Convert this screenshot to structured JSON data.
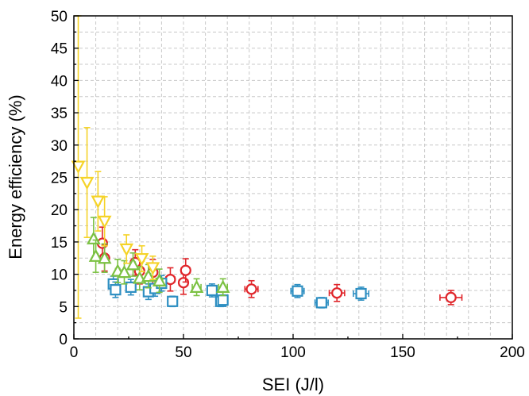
{
  "chart_data": {
    "type": "scatter",
    "xlabel": "SEI (J/l)",
    "ylabel": "Energy efficiency (%)",
    "xlim": [
      0,
      200
    ],
    "ylim": [
      0,
      50
    ],
    "xticks": [
      "0",
      "50",
      "100",
      "150",
      "200"
    ],
    "yticks": [
      "0",
      "5",
      "10",
      "15",
      "20",
      "25",
      "30",
      "35",
      "40",
      "45",
      "50"
    ],
    "grid": true,
    "series": [
      {
        "marker": "circle",
        "color": "#e0262b",
        "points": [
          {
            "x": 13,
            "y": 14.8,
            "ey": 2.5,
            "ex": 1
          },
          {
            "x": 14,
            "y": 12.5,
            "ey": 2,
            "ex": 1
          },
          {
            "x": 28,
            "y": 11.8,
            "ey": 2,
            "ex": 1.5
          },
          {
            "x": 30,
            "y": 10.5,
            "ey": 2,
            "ex": 1.5
          },
          {
            "x": 36,
            "y": 10.3,
            "ey": 2,
            "ex": 1.5
          },
          {
            "x": 44,
            "y": 9.2,
            "ey": 1.8,
            "ex": 2
          },
          {
            "x": 50,
            "y": 8.7,
            "ey": 1.8,
            "ex": 2
          },
          {
            "x": 51,
            "y": 10.6,
            "ey": 1.8,
            "ex": 2
          },
          {
            "x": 81,
            "y": 7.7,
            "ey": 1.3,
            "ex": 3
          },
          {
            "x": 120,
            "y": 7.1,
            "ey": 1.3,
            "ex": 3.5
          },
          {
            "x": 172,
            "y": 6.4,
            "ey": 1.1,
            "ex": 5
          }
        ]
      },
      {
        "marker": "square",
        "color": "#2e8fc2",
        "points": [
          {
            "x": 18,
            "y": 8.5,
            "ey": 1.2,
            "ex": 1
          },
          {
            "x": 19,
            "y": 7.6,
            "ey": 1.2,
            "ex": 1
          },
          {
            "x": 26,
            "y": 8.0,
            "ey": 1.2,
            "ex": 1
          },
          {
            "x": 34,
            "y": 7.3,
            "ey": 1.2,
            "ex": 1.5
          },
          {
            "x": 37,
            "y": 7.8,
            "ey": 1.2,
            "ex": 1.5
          },
          {
            "x": 40,
            "y": 8.6,
            "ey": 1.2,
            "ex": 1.5
          },
          {
            "x": 45,
            "y": 5.8,
            "ey": 0.8,
            "ex": 1.5
          },
          {
            "x": 63,
            "y": 7.5,
            "ey": 1,
            "ex": 2
          },
          {
            "x": 67,
            "y": 5.8,
            "ey": 0.8,
            "ex": 2
          },
          {
            "x": 68,
            "y": 6.0,
            "ey": 0.8,
            "ex": 2
          },
          {
            "x": 102,
            "y": 7.4,
            "ey": 1,
            "ex": 3
          },
          {
            "x": 113,
            "y": 5.6,
            "ey": 0.8,
            "ex": 3
          },
          {
            "x": 131,
            "y": 7.0,
            "ey": 1,
            "ex": 3.5
          }
        ]
      },
      {
        "marker": "triangle-up",
        "color": "#7bc142",
        "points": [
          {
            "x": 9,
            "y": 15.5,
            "ey": 3.3,
            "ex": 1
          },
          {
            "x": 10,
            "y": 12.8,
            "ey": 2.5,
            "ex": 1
          },
          {
            "x": 14,
            "y": 12.5,
            "ey": 2.2,
            "ex": 1
          },
          {
            "x": 20,
            "y": 10.5,
            "ey": 1.8,
            "ex": 1
          },
          {
            "x": 23,
            "y": 10.3,
            "ey": 1.8,
            "ex": 1
          },
          {
            "x": 27,
            "y": 11.5,
            "ey": 1.8,
            "ex": 1
          },
          {
            "x": 30,
            "y": 9.4,
            "ey": 1.8,
            "ex": 1
          },
          {
            "x": 34,
            "y": 9.7,
            "ey": 1.8,
            "ex": 1
          },
          {
            "x": 39,
            "y": 9.0,
            "ey": 1.8,
            "ex": 1.5
          },
          {
            "x": 56,
            "y": 8.0,
            "ey": 1.3,
            "ex": 2
          },
          {
            "x": 68,
            "y": 8.0,
            "ey": 1.3,
            "ex": 2
          }
        ]
      },
      {
        "marker": "triangle-down",
        "color": "#f5d328",
        "points": [
          {
            "x": 2,
            "y": 26.7,
            "ey": 23.5,
            "ex": 0.5
          },
          {
            "x": 6,
            "y": 24.2,
            "ey": 8.5,
            "ex": 0.5
          },
          {
            "x": 11,
            "y": 21.3,
            "ey": 4.6,
            "ex": 1
          },
          {
            "x": 14,
            "y": 18.2,
            "ey": 3.8,
            "ex": 1
          },
          {
            "x": 24,
            "y": 13.9,
            "ey": 2.2,
            "ex": 1
          },
          {
            "x": 31,
            "y": 12.4,
            "ey": 2,
            "ex": 1
          },
          {
            "x": 36,
            "y": 11.0,
            "ey": 1.8,
            "ex": 1
          }
        ]
      }
    ]
  }
}
